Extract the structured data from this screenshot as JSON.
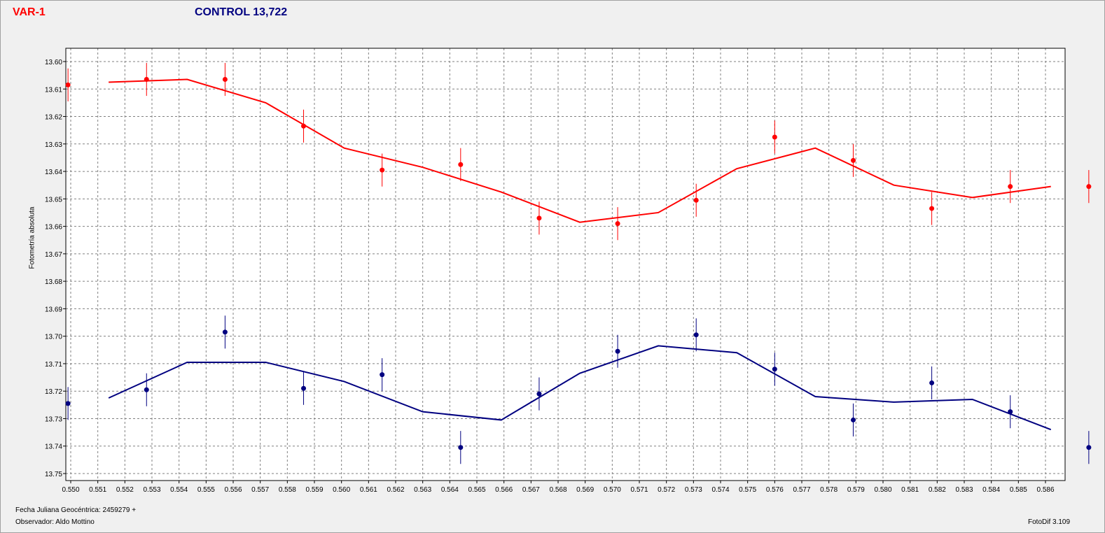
{
  "header": {
    "var_label": "VAR-1",
    "control_label": "CONTROL 13,722",
    "var_color": "#ff0000",
    "control_color": "#000080"
  },
  "footer": {
    "date_label": "Fecha Juliana Geocéntrica: 2459279 +",
    "observer_label": "Observador: Aldo Mottino",
    "software_label": "FotoDif 3.109"
  },
  "chart_data": {
    "type": "scatter",
    "title": "",
    "xlabel": "Fecha Juliana Geocéntrica: 2459279 +",
    "ylabel": "Fotometría absoluta",
    "xlim": [
      0.55,
      0.5866
    ],
    "ylim": [
      13.6,
      13.75
    ],
    "y_inverted": true,
    "grid": true,
    "x_ticks": [
      "0.550",
      "0.551",
      "0.552",
      "0.553",
      "0.554",
      "0.555",
      "0.556",
      "0.557",
      "0.558",
      "0.559",
      "0.560",
      "0.561",
      "0.562",
      "0.563",
      "0.564",
      "0.565",
      "0.566",
      "0.567",
      "0.568",
      "0.569",
      "0.570",
      "0.571",
      "0.572",
      "0.573",
      "0.574",
      "0.575",
      "0.576",
      "0.577",
      "0.578",
      "0.579",
      "0.580",
      "0.581",
      "0.582",
      "0.583",
      "0.584",
      "0.585",
      "0.586"
    ],
    "y_ticks": [
      "13.60",
      "13.61",
      "13.62",
      "13.63",
      "13.64",
      "13.65",
      "13.66",
      "13.67",
      "13.68",
      "13.69",
      "13.70",
      "13.71",
      "13.72",
      "13.73",
      "13.74",
      "13.75"
    ],
    "series": [
      {
        "name": "VAR-1",
        "color": "#ff0000",
        "points": [
          {
            "x": 0.5499,
            "y": 13.6085,
            "err": 0.006
          },
          {
            "x": 0.5528,
            "y": 13.6065,
            "err": 0.006
          },
          {
            "x": 0.5557,
            "y": 13.6065,
            "err": 0.006
          },
          {
            "x": 0.5586,
            "y": 13.6235,
            "err": 0.006
          },
          {
            "x": 0.5615,
            "y": 13.6395,
            "err": 0.006
          },
          {
            "x": 0.5644,
            "y": 13.6375,
            "err": 0.006
          },
          {
            "x": 0.5673,
            "y": 13.657,
            "err": 0.006
          },
          {
            "x": 0.5702,
            "y": 13.659,
            "err": 0.006
          },
          {
            "x": 0.5731,
            "y": 13.6505,
            "err": 0.006
          },
          {
            "x": 0.576,
            "y": 13.6275,
            "err": 0.006
          },
          {
            "x": 0.5789,
            "y": 13.636,
            "err": 0.006
          },
          {
            "x": 0.5818,
            "y": 13.6535,
            "err": 0.006
          },
          {
            "x": 0.5847,
            "y": 13.6455,
            "err": 0.006
          },
          {
            "x": 0.5876,
            "y": 13.6455,
            "err": 0.006
          }
        ],
        "fit_line": [
          {
            "x": 0.5514,
            "y": 13.6075
          },
          {
            "x": 0.5543,
            "y": 13.6065
          },
          {
            "x": 0.5572,
            "y": 13.615
          },
          {
            "x": 0.5601,
            "y": 13.6315
          },
          {
            "x": 0.563,
            "y": 13.6385
          },
          {
            "x": 0.5659,
            "y": 13.6475
          },
          {
            "x": 0.5688,
            "y": 13.6585
          },
          {
            "x": 0.5717,
            "y": 13.655
          },
          {
            "x": 0.5746,
            "y": 13.639
          },
          {
            "x": 0.5775,
            "y": 13.6315
          },
          {
            "x": 0.5804,
            "y": 13.645
          },
          {
            "x": 0.5833,
            "y": 13.6495
          },
          {
            "x": 0.5862,
            "y": 13.6455
          }
        ]
      },
      {
        "name": "CONTROL 13,722",
        "color": "#000080",
        "points": [
          {
            "x": 0.5499,
            "y": 13.7245,
            "err": 0.006
          },
          {
            "x": 0.5528,
            "y": 13.7195,
            "err": 0.006
          },
          {
            "x": 0.5557,
            "y": 13.6985,
            "err": 0.006
          },
          {
            "x": 0.5586,
            "y": 13.719,
            "err": 0.006
          },
          {
            "x": 0.5615,
            "y": 13.714,
            "err": 0.006
          },
          {
            "x": 0.5644,
            "y": 13.7405,
            "err": 0.006
          },
          {
            "x": 0.5673,
            "y": 13.721,
            "err": 0.006
          },
          {
            "x": 0.5702,
            "y": 13.7055,
            "err": 0.006
          },
          {
            "x": 0.5731,
            "y": 13.6995,
            "err": 0.006
          },
          {
            "x": 0.576,
            "y": 13.712,
            "err": 0.006
          },
          {
            "x": 0.5789,
            "y": 13.7305,
            "err": 0.006
          },
          {
            "x": 0.5818,
            "y": 13.717,
            "err": 0.006
          },
          {
            "x": 0.5847,
            "y": 13.7275,
            "err": 0.006
          },
          {
            "x": 0.5876,
            "y": 13.7405,
            "err": 0.006
          }
        ],
        "fit_line": [
          {
            "x": 0.5514,
            "y": 13.7225
          },
          {
            "x": 0.5543,
            "y": 13.7095
          },
          {
            "x": 0.5572,
            "y": 13.7095
          },
          {
            "x": 0.5601,
            "y": 13.7165
          },
          {
            "x": 0.563,
            "y": 13.7275
          },
          {
            "x": 0.5659,
            "y": 13.7305
          },
          {
            "x": 0.5688,
            "y": 13.7135
          },
          {
            "x": 0.5717,
            "y": 13.7035
          },
          {
            "x": 0.5746,
            "y": 13.706
          },
          {
            "x": 0.5775,
            "y": 13.722
          },
          {
            "x": 0.5804,
            "y": 13.724
          },
          {
            "x": 0.5833,
            "y": 13.723
          },
          {
            "x": 0.5862,
            "y": 13.734
          }
        ]
      }
    ]
  }
}
